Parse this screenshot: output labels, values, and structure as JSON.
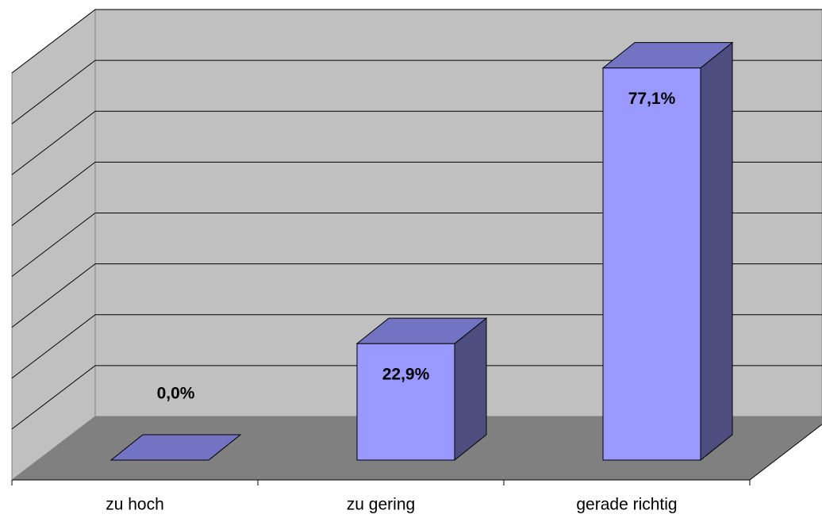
{
  "chart_data": {
    "type": "bar3d",
    "categories": [
      "zu hoch",
      "zu gering",
      "gerade richtig"
    ],
    "values": [
      0,
      22.9,
      77.1
    ],
    "value_labels": [
      "0,0%",
      "22,9%",
      "77,1%"
    ],
    "color": "#9999ff",
    "ylim": [
      0,
      80
    ],
    "grid": [
      0,
      10,
      20,
      30,
      40,
      50,
      60,
      70,
      80
    ]
  }
}
